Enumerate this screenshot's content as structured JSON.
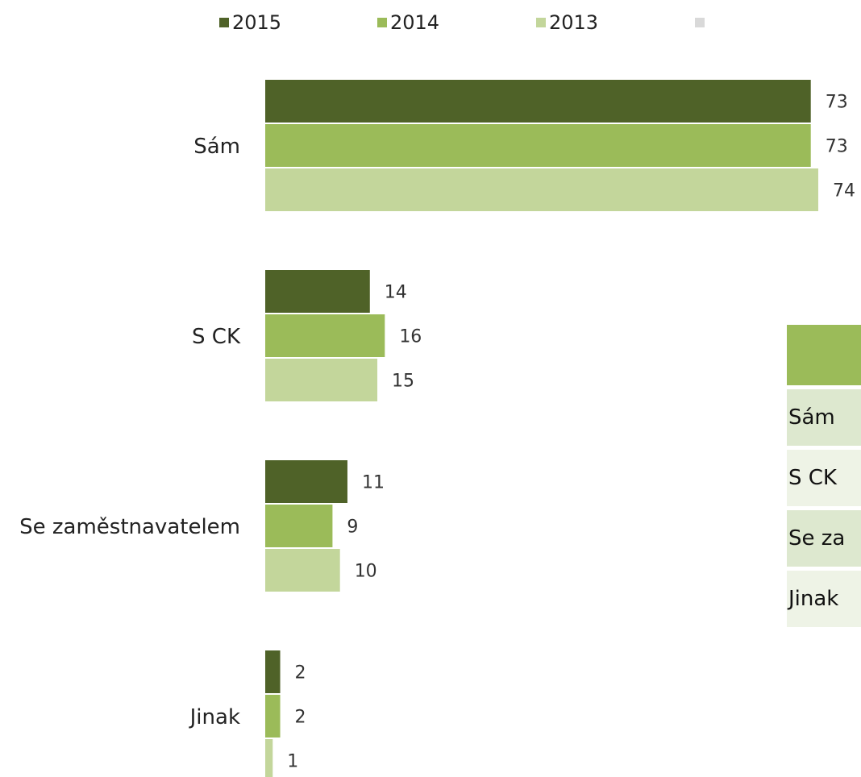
{
  "chart_data": {
    "type": "bar",
    "orientation": "horizontal",
    "categories": [
      "Sám",
      "S CK",
      "Se zaměstnavatelem",
      "Jinak"
    ],
    "series": [
      {
        "name": "2015",
        "color": "#4f6228",
        "values": [
          73,
          14,
          11,
          2
        ]
      },
      {
        "name": "2014",
        "color": "#9bbb59",
        "values": [
          73,
          16,
          9,
          2
        ]
      },
      {
        "name": "2013",
        "color": "#c3d69b",
        "values": [
          74,
          15,
          10,
          1
        ]
      }
    ]
  },
  "table": {
    "header_color": "#9bbb59",
    "rows": [
      "Sám",
      "S CK",
      "Se za",
      "Jinak"
    ]
  }
}
